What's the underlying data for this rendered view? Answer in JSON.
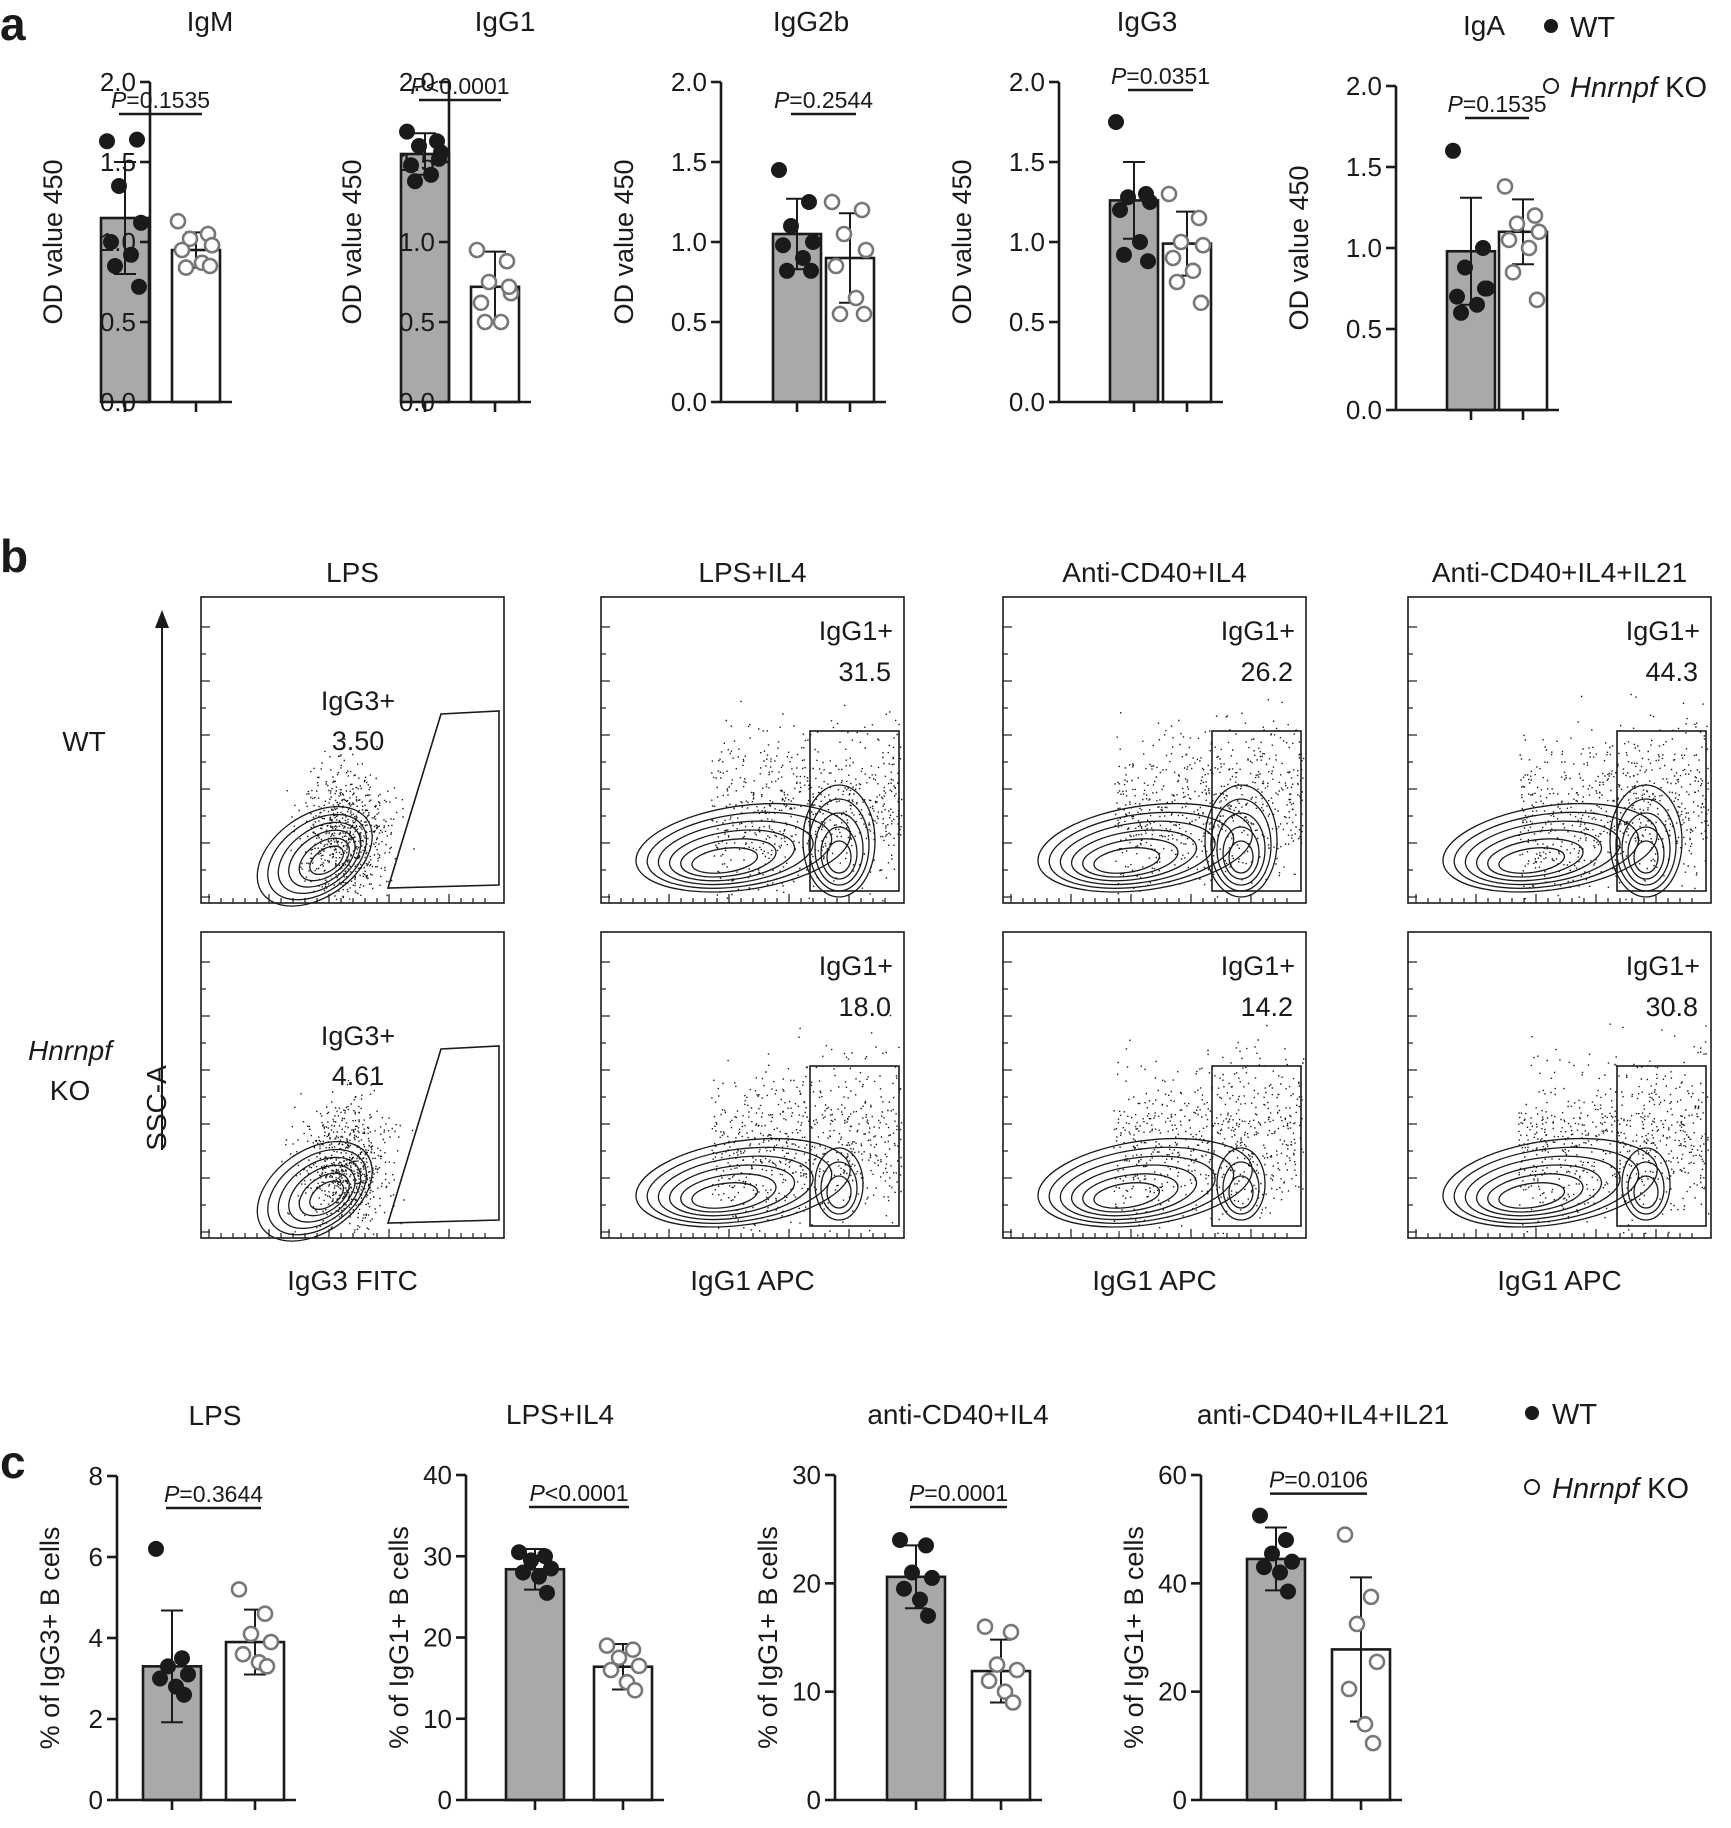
{
  "panel_letters": {
    "a": "a",
    "b": "b",
    "c": "c"
  },
  "legend": {
    "wt": "WT",
    "ko_gene": "Hnrnpf",
    "ko_suffix": " KO"
  },
  "colors": {
    "wt_fill": "#a9a9a9",
    "ko_fill": "#ffffff",
    "wt_dot": "#1a1a1a",
    "ko_dot_stroke": "#777777",
    "axis": "#1a1a1a"
  },
  "chart_data": [
    {
      "type": "bar",
      "panel": "a",
      "title": "IgM",
      "ylabel": "OD value 450",
      "ylim": [
        0,
        2.0
      ],
      "yticks": [
        0.0,
        0.5,
        1.0,
        1.5,
        2.0
      ],
      "yticklabels": [
        "0.0",
        "0.5",
        "1.0",
        "1.5",
        "2.0"
      ],
      "categories": [
        "WT",
        "Hnrnpf KO"
      ],
      "values": [
        1.15,
        0.95
      ],
      "errors": [
        0.35,
        0.11
      ],
      "points": [
        [
          1.63,
          1.64,
          1.35,
          1.12,
          1.0,
          0.92,
          0.85,
          0.72
        ],
        [
          1.13,
          1.05,
          1.02,
          0.98,
          0.95,
          0.87,
          0.84,
          0.85
        ]
      ],
      "p_prefix": "P",
      "p_text": "=0.1535"
    },
    {
      "type": "bar",
      "panel": "a",
      "title": "IgG1",
      "ylabel": "OD value 450",
      "ylim": [
        0,
        2.0
      ],
      "yticks": [
        0.0,
        0.5,
        1.0,
        1.5,
        2.0
      ],
      "yticklabels": [
        "0.0",
        "0.5",
        "1.0",
        "1.5",
        "2.0"
      ],
      "categories": [
        "WT",
        "Hnrnpf KO"
      ],
      "values": [
        1.55,
        0.72
      ],
      "errors": [
        0.13,
        0.22
      ],
      "points": [
        [
          1.69,
          1.63,
          1.6,
          1.56,
          1.48,
          1.42,
          1.38,
          1.52
        ],
        [
          0.95,
          0.88,
          0.75,
          0.68,
          0.62,
          0.5,
          0.5,
          0.72
        ]
      ],
      "p_prefix": "P",
      "p_text": "<0.0001"
    },
    {
      "type": "bar",
      "panel": "a",
      "title": "IgG2b",
      "ylabel": "OD value 450",
      "ylim": [
        0,
        2.0
      ],
      "yticks": [
        0.0,
        0.5,
        1.0,
        1.5,
        2.0
      ],
      "yticklabels": [
        "0.0",
        "0.5",
        "1.0",
        "1.5",
        "2.0"
      ],
      "categories": [
        "WT",
        "Hnrnpf KO"
      ],
      "values": [
        1.05,
        0.9
      ],
      "errors": [
        0.22,
        0.28
      ],
      "points": [
        [
          1.45,
          1.25,
          1.1,
          1.0,
          0.98,
          0.9,
          0.82,
          0.82
        ],
        [
          1.25,
          1.2,
          1.05,
          0.95,
          0.85,
          0.65,
          0.55,
          0.55
        ]
      ],
      "p_prefix": "P",
      "p_text": "=0.2544"
    },
    {
      "type": "bar",
      "panel": "a",
      "title": "IgG3",
      "ylabel": "OD value 450",
      "ylim": [
        0,
        2.0
      ],
      "yticks": [
        0.0,
        0.5,
        1.0,
        1.5,
        2.0
      ],
      "yticklabels": [
        "0.0",
        "0.5",
        "1.0",
        "1.5",
        "2.0"
      ],
      "categories": [
        "WT",
        "Hnrnpf KO"
      ],
      "values": [
        1.26,
        0.99
      ],
      "errors": [
        0.24,
        0.2
      ],
      "points": [
        [
          1.75,
          1.3,
          1.28,
          1.25,
          1.2,
          1.0,
          0.92,
          0.88
        ],
        [
          1.3,
          1.15,
          1.0,
          0.98,
          0.9,
          0.82,
          0.75,
          0.62
        ]
      ],
      "p_prefix": "P",
      "p_text": "=0.0351"
    },
    {
      "type": "bar",
      "panel": "a",
      "title": "IgA",
      "ylabel": "OD value 450",
      "ylim": [
        0,
        2.0
      ],
      "yticks": [
        0.0,
        0.5,
        1.0,
        1.5,
        2.0
      ],
      "yticklabels": [
        "0.0",
        "0.5",
        "1.0",
        "1.5",
        "2.0"
      ],
      "categories": [
        "WT",
        "Hnrnpf KO"
      ],
      "values": [
        0.98,
        1.1
      ],
      "errors": [
        0.33,
        0.2
      ],
      "points": [
        [
          1.6,
          1.0,
          0.88,
          0.75,
          0.7,
          0.65,
          0.6,
          0.75
        ],
        [
          1.38,
          1.2,
          1.15,
          1.1,
          1.05,
          1.0,
          0.85,
          0.68
        ]
      ],
      "p_prefix": "P",
      "p_text": "=0.1535"
    },
    {
      "type": "bar",
      "panel": "c",
      "title": "LPS",
      "ylabel": "% of IgG3+ B cells",
      "ylim": [
        0,
        8
      ],
      "yticks": [
        0,
        2,
        4,
        6,
        8
      ],
      "yticklabels": [
        "0",
        "2",
        "4",
        "6",
        "8"
      ],
      "categories": [
        "WT",
        "Hnrnpf KO"
      ],
      "values": [
        3.3,
        3.9
      ],
      "errors": [
        1.38,
        0.8
      ],
      "points": [
        [
          6.2,
          3.5,
          3.3,
          3.1,
          3.0,
          2.8,
          2.6
        ],
        [
          5.2,
          4.6,
          4.1,
          3.9,
          3.6,
          3.4,
          3.3
        ]
      ],
      "p_prefix": "P",
      "p_text": "=0.3644"
    },
    {
      "type": "bar",
      "panel": "c",
      "title": "LPS+IL4",
      "ylabel": "% of IgG1+ B cells",
      "ylim": [
        0,
        40
      ],
      "yticks": [
        0,
        10,
        20,
        30,
        40
      ],
      "yticklabels": [
        "0",
        "10",
        "20",
        "30",
        "40"
      ],
      "categories": [
        "WT",
        "Hnrnpf KO"
      ],
      "values": [
        28.4,
        16.4
      ],
      "errors": [
        2.5,
        2.8
      ],
      "points": [
        [
          30.5,
          30.0,
          29.5,
          28.5,
          28.0,
          27.5,
          25.5
        ],
        [
          19.0,
          18.5,
          17.5,
          16.5,
          16.0,
          14.5,
          13.5
        ]
      ],
      "p_prefix": "P",
      "p_text": "<0.0001"
    },
    {
      "type": "bar",
      "panel": "c",
      "title": "anti-CD40+IL4",
      "ylabel": "% of IgG1+ B cells",
      "ylim": [
        0,
        30
      ],
      "yticks": [
        0,
        10,
        20,
        30
      ],
      "yticklabels": [
        "0",
        "10",
        "20",
        "30"
      ],
      "categories": [
        "WT",
        "Hnrnpf KO"
      ],
      "values": [
        20.6,
        11.9
      ],
      "errors": [
        2.9,
        2.9
      ],
      "points": [
        [
          24.0,
          23.5,
          21.0,
          20.5,
          19.5,
          18.5,
          17.0
        ],
        [
          16.0,
          15.5,
          12.5,
          12.0,
          11.0,
          10.0,
          9.0
        ]
      ],
      "p_prefix": "P",
      "p_text": "=0.0001"
    },
    {
      "type": "bar",
      "panel": "c",
      "title": "anti-CD40+IL4+IL21",
      "ylabel": "% of IgG1+ B cells",
      "ylim": [
        0,
        60
      ],
      "yticks": [
        0,
        20,
        40,
        60
      ],
      "yticklabels": [
        "0",
        "20",
        "40",
        "60"
      ],
      "categories": [
        "WT",
        "Hnrnpf KO"
      ],
      "values": [
        44.5,
        27.8
      ],
      "errors": [
        5.8,
        13.3
      ],
      "points": [
        [
          52.5,
          48.0,
          45.5,
          44.0,
          43.0,
          42.0,
          38.5
        ],
        [
          49.0,
          37.5,
          32.5,
          25.5,
          20.5,
          14.0,
          10.5
        ]
      ],
      "p_prefix": "P",
      "p_text": "=0.0106"
    }
  ],
  "flow": {
    "row_labels": {
      "wt": "WT",
      "ko_gene": "Hnrnpf",
      "ko_suffix": "KO"
    },
    "y_axis_label": "SSC-A",
    "columns": [
      {
        "title": "LPS",
        "xlabel": "IgG3 FITC",
        "gate_label": "IgG3+",
        "wt_value": "3.50",
        "ko_value": "4.61"
      },
      {
        "title": "LPS+IL4",
        "xlabel": "IgG1 APC",
        "gate_label": "IgG1+",
        "wt_value": "31.5",
        "ko_value": "18.0"
      },
      {
        "title": "Anti-CD40+IL4",
        "xlabel": "IgG1 APC",
        "gate_label": "IgG1+",
        "wt_value": "26.2",
        "ko_value": "14.2"
      },
      {
        "title": "Anti-CD40+IL4+IL21",
        "xlabel": "IgG1 APC",
        "gate_label": "IgG1+",
        "wt_value": "44.3",
        "ko_value": "30.8"
      }
    ]
  }
}
